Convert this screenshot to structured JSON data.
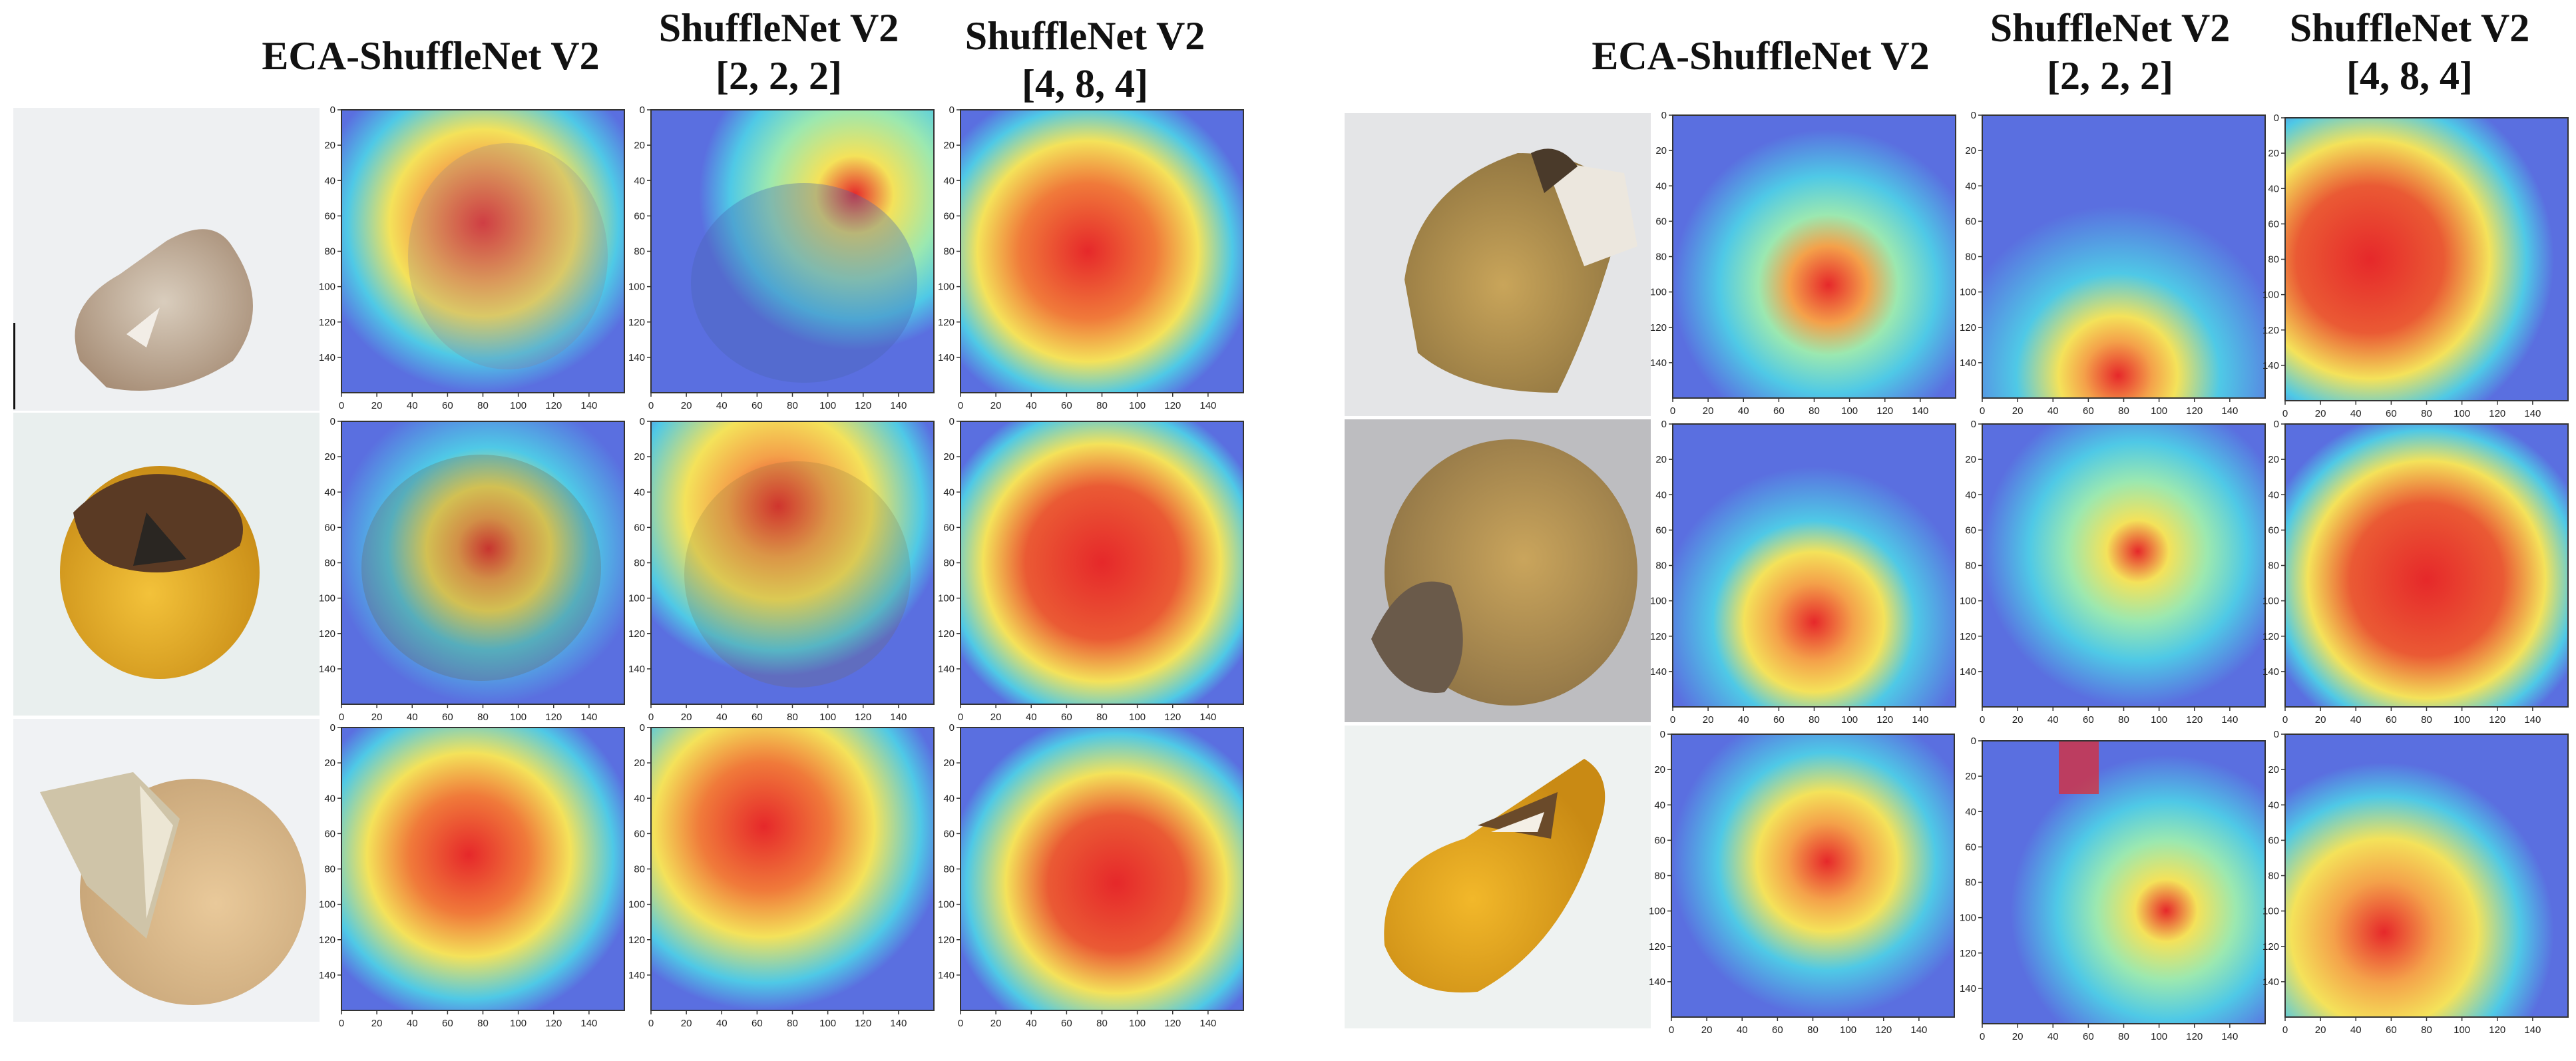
{
  "figure": {
    "left_panel": {
      "headers": [
        "ECA-ShuffleNet V2",
        "ShuffleNet V2",
        "ShuffleNet V2"
      ],
      "subheaders": [
        "",
        "[2, 2, 2]",
        "[4, 8, 4]"
      ]
    },
    "right_panel": {
      "headers": [
        "ECA-ShuffleNet V2",
        "ShuffleNet V2",
        "ShuffleNet V2"
      ],
      "subheaders": [
        "",
        "[2, 2, 2]",
        "[4, 8, 4]"
      ]
    },
    "axis_ticks": {
      "x": [
        "0",
        "20",
        "40",
        "60",
        "80",
        "100",
        "120",
        "140"
      ],
      "y": [
        "0",
        "20",
        "40",
        "60",
        "80",
        "100",
        "120",
        "140"
      ]
    },
    "colors": {
      "cold": "#5a6fe0",
      "cool": "#4fc9e6",
      "mid": "#9be8b0",
      "warm": "#f4e25a",
      "hot": "#e6282a"
    }
  }
}
